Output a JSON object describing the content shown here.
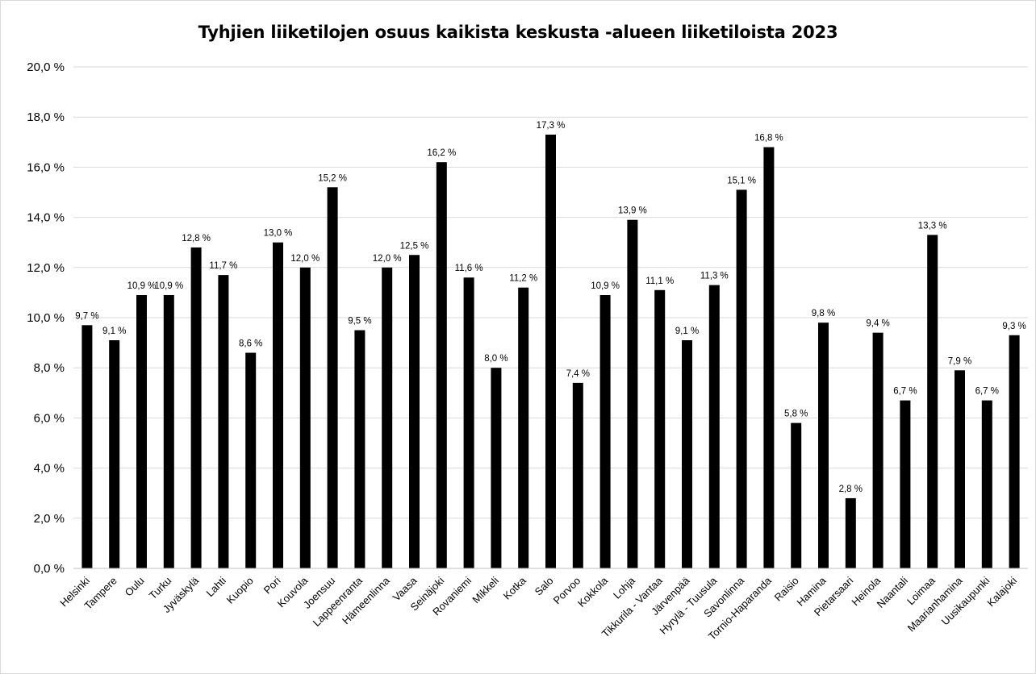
{
  "chart_data": {
    "type": "bar",
    "title": "Tyhjien liiketilojen osuus kaikista keskusta -alueen liiketiloista 2023",
    "xlabel": "",
    "ylabel": "",
    "ylim": [
      0,
      20
    ],
    "y_ticks": [
      "0,0 %",
      "2,0 %",
      "4,0 %",
      "6,0 %",
      "8,0 %",
      "10,0 %",
      "12,0 %",
      "14,0 %",
      "16,0 %",
      "18,0 %",
      "20,0 %"
    ],
    "grid": true,
    "legend": "none",
    "bar_color": "#000000",
    "categories": [
      "Helsinki",
      "Tampere",
      "Oulu",
      "Turku",
      "Jyväskylä",
      "Lahti",
      "Kuopio",
      "Pori",
      "Kouvola",
      "Joensuu",
      "Lappeenranta",
      "Hämeenlinna",
      "Vaasa",
      "Seinäjoki",
      "Rovaniemi",
      "Mikkeli",
      "Kotka",
      "Salo",
      "Porvoo",
      "Kokkola",
      "Lohja",
      "Tikkurila - Vantaa",
      "Järvenpää",
      "Hyrylä - Tuusula",
      "Savonlinna",
      "Tornio-Haparanda",
      "Raisio",
      "Hamina",
      "Pietarsaari",
      "Heinola",
      "Naantali",
      "Loimaa",
      "Maarianhamina",
      "Uusikaupunki",
      "Kalajoki"
    ],
    "values": [
      9.7,
      9.1,
      10.9,
      10.9,
      12.8,
      11.7,
      8.6,
      13.0,
      12.0,
      15.2,
      9.5,
      12.0,
      12.5,
      16.2,
      11.6,
      8.0,
      11.2,
      17.3,
      7.4,
      10.9,
      13.9,
      11.1,
      9.1,
      11.3,
      15.1,
      16.8,
      5.8,
      9.8,
      2.8,
      9.4,
      6.7,
      13.3,
      7.9,
      6.7,
      9.3
    ],
    "data_labels": [
      "9,7 %",
      "9,1 %",
      "10,9 %",
      "10,9 %",
      "12,8 %",
      "11,7 %",
      "8,6 %",
      "13,0 %",
      "12,0 %",
      "15,2 %",
      "9,5 %",
      "12,0 %",
      "12,5 %",
      "16,2 %",
      "11,6 %",
      "8,0 %",
      "11,2 %",
      "17,3 %",
      "7,4 %",
      "10,9 %",
      "13,9 %",
      "11,1 %",
      "9,1 %",
      "11,3 %",
      "15,1 %",
      "16,8 %",
      "5,8 %",
      "9,8 %",
      "2,8 %",
      "9,4 %",
      "6,7 %",
      "13,3 %",
      "7,9 %",
      "6,7 %",
      "9,3 %"
    ]
  }
}
